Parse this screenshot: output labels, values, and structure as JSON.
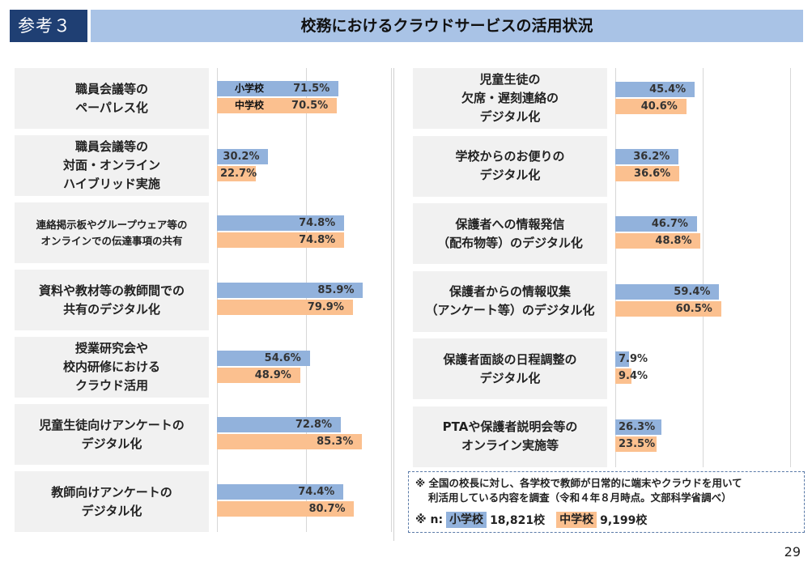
{
  "header": {
    "badge": "参考３",
    "title": "校務におけるクラウドサービスの活用状況"
  },
  "colors": {
    "elementary": "#92b2dc",
    "junior": "#fbc08f",
    "header_dark": "#1f3f73",
    "header_light": "#a9c3e6"
  },
  "chart_data": {
    "type": "bar",
    "series": [
      {
        "name": "小学校"
      },
      {
        "name": "中学校"
      }
    ],
    "xlim": [
      0,
      100
    ],
    "left": [
      {
        "label": [
          "職員会議等の",
          "ペーパレス化"
        ],
        "values": [
          71.5,
          70.5
        ],
        "text": [
          "71.5%",
          "70.5%"
        ]
      },
      {
        "label": [
          "職員会議等の",
          "対面・オンライン",
          "ハイブリッド実施"
        ],
        "values": [
          30.2,
          22.7
        ],
        "text": [
          "30.2%",
          "22.7%"
        ]
      },
      {
        "label": [
          "連絡掲示板やグループウェア等の",
          "オンラインでの伝達事項の共有"
        ],
        "values": [
          74.8,
          74.8
        ],
        "text": [
          "74.8%",
          "74.8%"
        ]
      },
      {
        "label": [
          "資料や教材等の教師間での",
          "共有のデジタル化"
        ],
        "values": [
          85.9,
          79.9
        ],
        "text": [
          "85.9%",
          "79.9%"
        ]
      },
      {
        "label": [
          "授業研究会や",
          "校内研修における",
          "クラウド活用"
        ],
        "values": [
          54.6,
          48.9
        ],
        "text": [
          "54.6%",
          "48.9%"
        ]
      },
      {
        "label": [
          "児童生徒向けアンケートの",
          "デジタル化"
        ],
        "values": [
          72.8,
          85.3
        ],
        "text": [
          "72.8%",
          "85.3%"
        ]
      },
      {
        "label": [
          "教師向けアンケートの",
          "デジタル化"
        ],
        "values": [
          74.4,
          80.7
        ],
        "text": [
          "74.4%",
          "80.7%"
        ]
      }
    ],
    "right": [
      {
        "label": [
          "児童生徒の",
          "欠席・遅刻連絡の",
          "デジタル化"
        ],
        "values": [
          45.4,
          40.6
        ],
        "text": [
          "45.4%",
          "40.6%"
        ]
      },
      {
        "label": [
          "学校からのお便りの",
          "デジタル化"
        ],
        "values": [
          36.2,
          36.6
        ],
        "text": [
          "36.2%",
          "36.6%"
        ]
      },
      {
        "label": [
          "保護者への情報発信",
          "（配布物等）のデジタル化"
        ],
        "values": [
          46.7,
          48.8
        ],
        "text": [
          "46.7%",
          "48.8%"
        ]
      },
      {
        "label": [
          "保護者からの情報収集",
          "（アンケート等）のデジタル化"
        ],
        "values": [
          59.4,
          60.5
        ],
        "text": [
          "59.4%",
          "60.5%"
        ]
      },
      {
        "label": [
          "保護者面談の日程調整の",
          "デジタル化"
        ],
        "values": [
          7.9,
          9.4
        ],
        "text": [
          "7.9%",
          "9.4%"
        ]
      },
      {
        "label": [
          "PTAや保護者説明会等の",
          "オンライン実施等"
        ],
        "values": [
          26.3,
          23.5
        ],
        "text": [
          "26.3%",
          "23.5%"
        ]
      }
    ]
  },
  "note": {
    "line1": "※ 全国の校長に対し、各学校で教師が日常的に端末やクラウドを用いて",
    "line2": "利活用している内容を調査（令和４年８月時点。文部科学省調べ）",
    "n_prefix": "※ n:",
    "elem_label": "小学校",
    "elem_n": "18,821校",
    "jr_label": "中学校",
    "jr_n": "9,199校"
  },
  "page_number": "29"
}
